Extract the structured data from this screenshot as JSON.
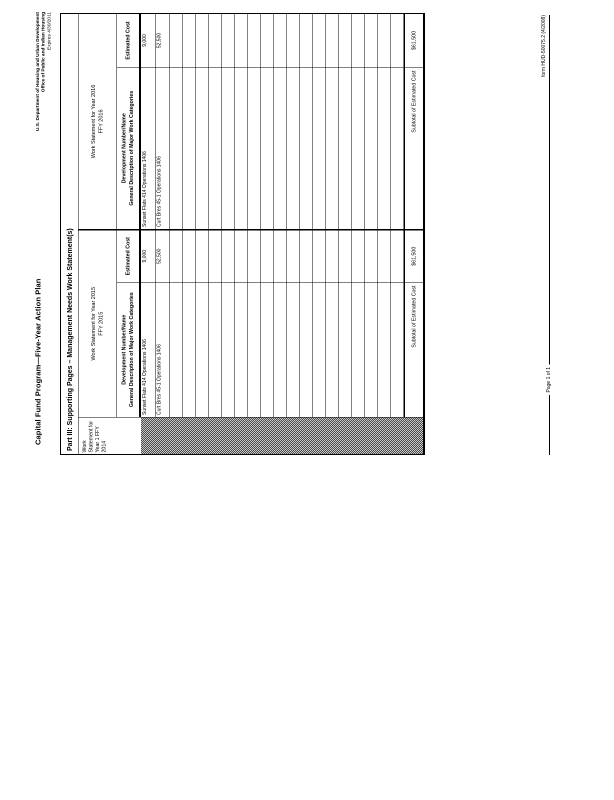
{
  "page": {
    "header": {
      "form_title": "Capital Fund Program—Five-Year Action Plan",
      "agency_line1": "U.S. Department of Housing and Urban Development",
      "agency_line2": "Office of Public and Indian Housing",
      "agency_line3": "Expires 4/30/2011"
    },
    "table": {
      "part_title": "Part III: Supporting Pages – Management Needs Work Statement(s)",
      "year1_column": {
        "line1": "Work",
        "line2": "Statement for",
        "line3": "Year 1 FFY",
        "line4": "2014"
      },
      "groups": [
        {
          "year_title": "Work Statement for Year 2015",
          "ffy": "FFY 2015",
          "desc_header_line1": "Development Number/Name",
          "desc_header_line2": "General Description of Major Work Categories",
          "cost_header": "Estimated Cost",
          "rows": [
            {
              "desc": "Sunset Flats 414 Operations 1406",
              "cost": "9,000"
            },
            {
              "desc": "Curt Bres 45-1 Operations 1406",
              "cost": "52,500"
            }
          ],
          "subtotal_label": "Subtotal of Estimated Cost",
          "subtotal_value": "$61,500"
        },
        {
          "year_title": "Work Statement for Year 2016",
          "ffy": "FFY 2016",
          "desc_header_line1": "Development Number/Name",
          "desc_header_line2": "General Description of Major Work Categories",
          "cost_header": "Estimated Cost",
          "rows": [
            {
              "desc": "Sunset Flats 414 Operations 1406",
              "cost": "9,000"
            },
            {
              "desc": "Curt Bres 45-1 Operations 1406",
              "cost": "52,500"
            }
          ],
          "subtotal_label": "Subtotal of Estimated Cost",
          "subtotal_value": "$61,500"
        }
      ],
      "empty_row_count": 18
    },
    "footer": {
      "page_label": "Page 1 of 1",
      "form_label": "form HUD-50075.2 (4/2008)"
    }
  }
}
